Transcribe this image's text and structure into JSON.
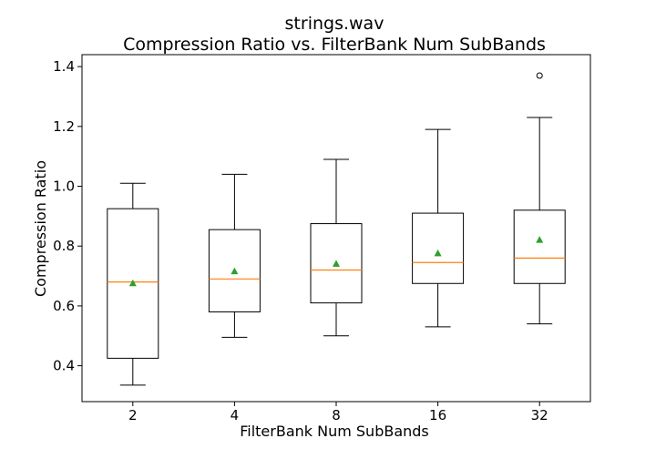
{
  "chart_data": {
    "type": "box",
    "title_line1": "strings.wav",
    "title_line2": "Compression Ratio vs. FilterBank Num SubBands",
    "xlabel": "FilterBank Num SubBands",
    "ylabel": "Compression Ratio",
    "ylim": [
      0.28,
      1.44
    ],
    "yticks": [
      "0.4",
      "0.6",
      "0.8",
      "1.0",
      "1.2",
      "1.4"
    ],
    "yticks_values": [
      0.4,
      0.6,
      0.8,
      1.0,
      1.2,
      1.4
    ],
    "categories": [
      "2",
      "4",
      "8",
      "16",
      "32"
    ],
    "boxes": [
      {
        "whisker_low": 0.335,
        "q1": 0.425,
        "median": 0.68,
        "q3": 0.925,
        "whisker_high": 1.01,
        "mean": 0.675,
        "outliers": []
      },
      {
        "whisker_low": 0.495,
        "q1": 0.58,
        "median": 0.69,
        "q3": 0.855,
        "whisker_high": 1.04,
        "mean": 0.715,
        "outliers": []
      },
      {
        "whisker_low": 0.5,
        "q1": 0.61,
        "median": 0.72,
        "q3": 0.875,
        "whisker_high": 1.09,
        "mean": 0.74,
        "outliers": []
      },
      {
        "whisker_low": 0.53,
        "q1": 0.675,
        "median": 0.745,
        "q3": 0.91,
        "whisker_high": 1.19,
        "mean": 0.775,
        "outliers": []
      },
      {
        "whisker_low": 0.54,
        "q1": 0.675,
        "median": 0.76,
        "q3": 0.92,
        "whisker_high": 1.23,
        "mean": 0.82,
        "outliers": [
          1.37
        ]
      }
    ],
    "grid": false,
    "colors": {
      "box": "#000000",
      "median": "#ff7f0e",
      "mean": "#2ca02c",
      "outlier": "#000000"
    }
  }
}
